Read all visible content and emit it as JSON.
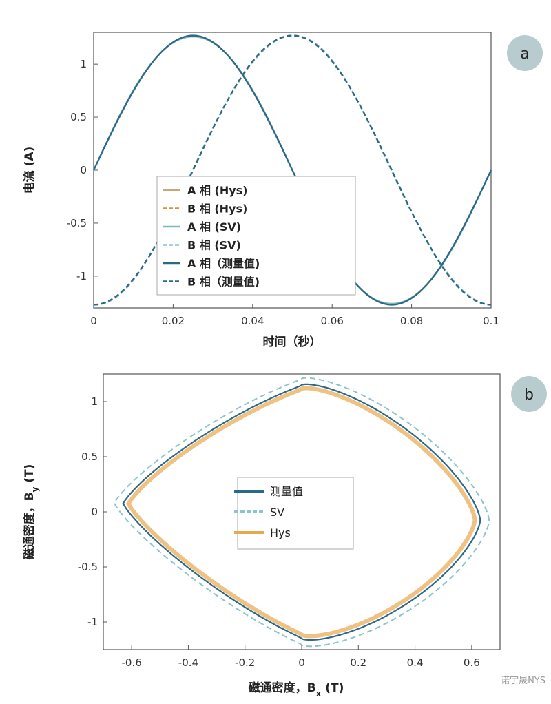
{
  "chart_data": [
    {
      "panel": "a",
      "type": "line",
      "xlabel": "时间（秒）",
      "ylabel": "电流 (A)",
      "xlim": [
        0,
        0.1
      ],
      "ylim": [
        -1.3,
        1.3
      ],
      "xticks": [
        0,
        0.02,
        0.04,
        0.06,
        0.08,
        0.1
      ],
      "xtick_labels": [
        "0",
        "0.02",
        "0.04",
        "0.06",
        "0.08",
        "0.1"
      ],
      "yticks": [
        1,
        0.5,
        0,
        -0.5,
        -1
      ],
      "ytick_labels": [
        "1",
        "0.5",
        "0",
        "-0.5",
        "-1"
      ],
      "legend_position": "lower-center",
      "amplitude": 1.27,
      "period": 0.1,
      "series": [
        {
          "name": "A 相 (Hys)",
          "color": "#c8a878",
          "style": "solid",
          "phase": 0.0
        },
        {
          "name": "B 相 (Hys)",
          "color": "#d4943c",
          "style": "dashed",
          "phase": -1.5708
        },
        {
          "name": "A 相 (SV)",
          "color": "#7fb8c0",
          "style": "solid",
          "phase": 0.0
        },
        {
          "name": "B 相 (SV)",
          "color": "#8cc4cc",
          "style": "dashed",
          "phase": -1.5708
        },
        {
          "name": "A 相（测量值)",
          "color": "#2a6a88",
          "style": "solid",
          "phase": 0.0
        },
        {
          "name": "B 相（测量值)",
          "color": "#2a6a88",
          "style": "dashed",
          "phase": -1.5708
        }
      ]
    },
    {
      "panel": "b",
      "type": "line",
      "xlabel": "磁通密度，B",
      "xlabel_sub": "x",
      "xlabel_unit": " (T)",
      "ylabel": "磁通密度，B",
      "ylabel_sub": "y",
      "ylabel_unit": " (T)",
      "xlim": [
        -0.7,
        0.7
      ],
      "ylim": [
        -1.25,
        1.25
      ],
      "xticks": [
        -0.6,
        -0.4,
        -0.2,
        0,
        0.2,
        0.4,
        0.6
      ],
      "xtick_labels": [
        "-0.6",
        "-0.4",
        "-0.2",
        "0",
        "0.2",
        "0.4",
        "0.6"
      ],
      "yticks": [
        1,
        0.5,
        0,
        -0.5,
        -1
      ],
      "ytick_labels": [
        "1",
        "0.5",
        "0",
        "-0.5",
        "-1"
      ],
      "legend_position": "center",
      "series": [
        {
          "name": "测量值",
          "color": "#2a6a88",
          "style": "solid",
          "scale": 1.0
        },
        {
          "name": "SV",
          "color": "#8cc4cc",
          "style": "dashed",
          "scale": 1.05
        },
        {
          "name": "Hys",
          "color": "#e8a850",
          "style": "solid",
          "scale": 0.97
        }
      ]
    }
  ],
  "badges": {
    "a": "a",
    "b": "b"
  },
  "watermark": "诺宇晟NYS"
}
